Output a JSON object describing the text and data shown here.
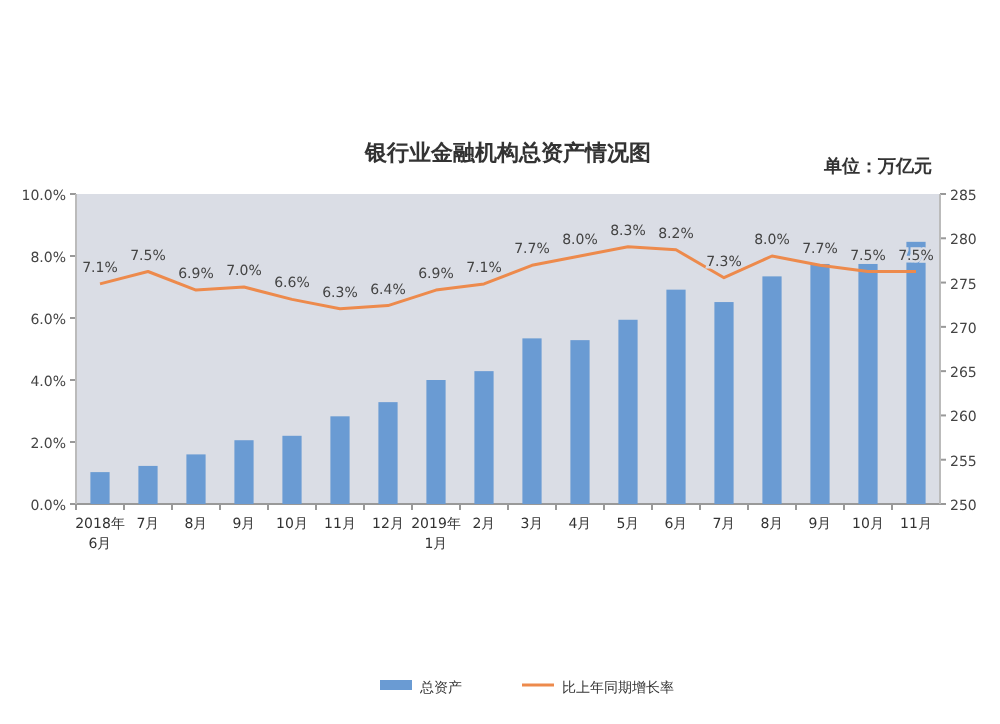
{
  "chart_data": {
    "type": "bar",
    "title": "银行业金融机构总资产情况图",
    "annotations": [
      "单位：万亿元"
    ],
    "categories": [
      "2018年\n6月",
      "7月",
      "8月",
      "9月",
      "10月",
      "11月",
      "12月",
      "2019年\n1月",
      "2月",
      "3月",
      "4月",
      "5月",
      "6月",
      "7月",
      "8月",
      "9月",
      "10月",
      "11月"
    ],
    "series": [
      {
        "name": "总资产",
        "axis": "y2",
        "color": "#6a9bd3",
        "values": [
          253.6,
          254.3,
          255.6,
          257.2,
          257.7,
          259.9,
          261.5,
          264.0,
          265.0,
          268.7,
          268.5,
          270.8,
          274.2,
          272.8,
          275.7,
          277.1,
          277.1,
          279.6
        ]
      },
      {
        "name": "比上年同期增长率",
        "type": "line",
        "color": "#ed8a4c",
        "values": [
          7.1,
          7.5,
          6.9,
          7.0,
          6.6,
          6.3,
          6.4,
          6.9,
          7.1,
          7.7,
          8.0,
          8.3,
          8.2,
          7.3,
          8.0,
          7.7,
          7.5,
          7.5
        ],
        "value_labels": [
          "7.1%",
          "7.5%",
          "6.9%",
          "7.0%",
          "6.6%",
          "6.3%",
          "6.4%",
          "6.9%",
          "7.1%",
          "7.7%",
          "8.0%",
          "8.3%",
          "8.2%",
          "7.3%",
          "8.0%",
          "7.7%",
          "7.5%",
          "7.5%"
        ]
      }
    ],
    "ylim": [
      0,
      10
    ],
    "yticks": [
      {
        "value": 0,
        "label": "0.0%"
      },
      {
        "value": 2,
        "label": "2.0%"
      },
      {
        "value": 4,
        "label": "4.0%"
      },
      {
        "value": 6,
        "label": "6.0%"
      },
      {
        "value": 8,
        "label": "8.0%"
      },
      {
        "value": 10,
        "label": "10.0%"
      }
    ],
    "y2lim": [
      250,
      285
    ],
    "y2ticks": [
      250,
      255,
      260,
      265,
      270,
      275,
      280,
      285
    ],
    "legend": "bottom",
    "marker": "none"
  }
}
